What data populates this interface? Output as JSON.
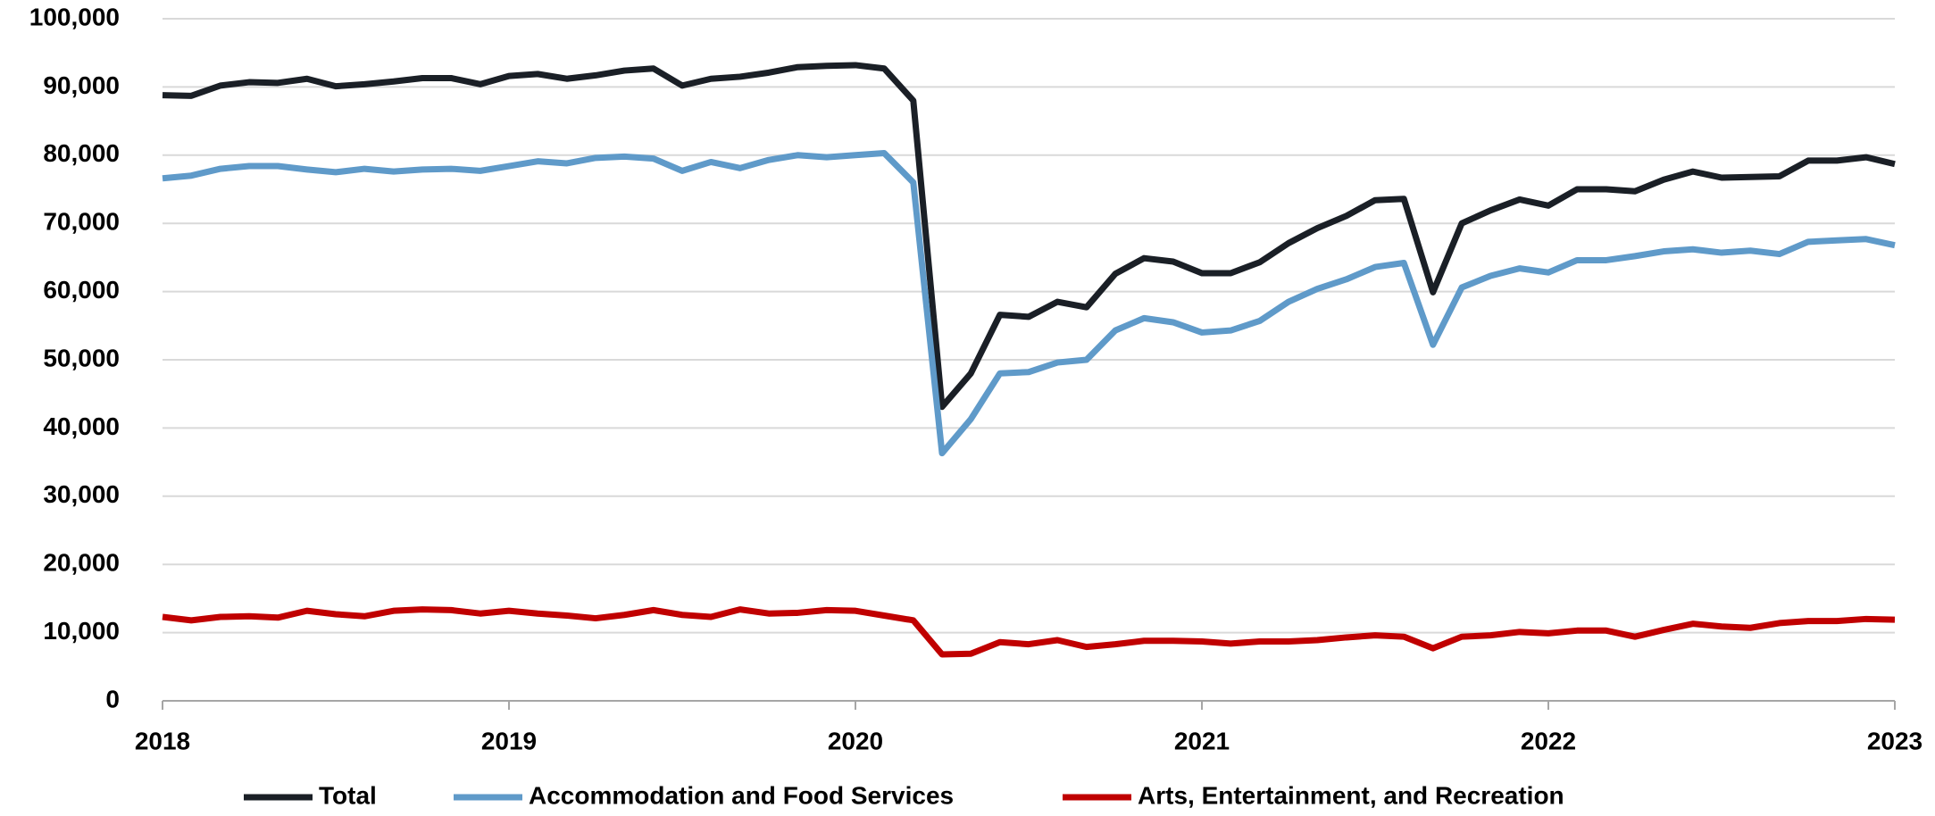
{
  "chart_data": {
    "type": "line",
    "x": [
      2018,
      2018.083,
      2018.167,
      2018.25,
      2018.333,
      2018.417,
      2018.5,
      2018.583,
      2018.667,
      2018.75,
      2018.833,
      2018.917,
      2019,
      2019.083,
      2019.167,
      2019.25,
      2019.333,
      2019.417,
      2019.5,
      2019.583,
      2019.667,
      2019.75,
      2019.833,
      2019.917,
      2020,
      2020.083,
      2020.167,
      2020.25,
      2020.333,
      2020.417,
      2020.5,
      2020.583,
      2020.667,
      2020.75,
      2020.833,
      2020.917,
      2021,
      2021.083,
      2021.167,
      2021.25,
      2021.333,
      2021.417,
      2021.5,
      2021.583,
      2021.667,
      2021.75,
      2021.833,
      2021.917,
      2022,
      2022.083,
      2022.167,
      2022.25,
      2022.333,
      2022.417,
      2022.5,
      2022.583,
      2022.667,
      2022.75,
      2022.833,
      2022.917,
      2023
    ],
    "series": [
      {
        "name": "Total",
        "color": "#1a1f26",
        "values": [
          88800,
          88700,
          90200,
          90700,
          90600,
          91200,
          90100,
          90400,
          90800,
          91300,
          91300,
          90400,
          91600,
          91900,
          91200,
          91700,
          92400,
          92700,
          90200,
          91200,
          91500,
          92100,
          92900,
          93100,
          93200,
          92700,
          88000,
          43100,
          48000,
          56600,
          56300,
          58500,
          57700,
          62600,
          64900,
          64400,
          62700,
          62700,
          64300,
          67100,
          69300,
          71100,
          73400,
          73600,
          59900,
          70000,
          71900,
          73500,
          72600,
          75000,
          75000,
          74700,
          76400,
          77600,
          76700,
          76800,
          76900,
          79200,
          79200,
          79700,
          78700
        ]
      },
      {
        "name": "Accommodation and Food Services",
        "color": "#5f9ac9",
        "values": [
          76600,
          77000,
          78000,
          78400,
          78400,
          77900,
          77500,
          78000,
          77600,
          77900,
          78000,
          77700,
          78400,
          79100,
          78800,
          79600,
          79800,
          79500,
          77700,
          79000,
          78100,
          79300,
          80000,
          79700,
          80000,
          80300,
          76000,
          36300,
          41300,
          48000,
          48200,
          49600,
          50000,
          54300,
          56100,
          55500,
          54000,
          54300,
          55700,
          58500,
          60400,
          61800,
          63600,
          64200,
          52200,
          60600,
          62300,
          63400,
          62800,
          64600,
          64600,
          65200,
          65900,
          66200,
          65700,
          66000,
          65500,
          67300,
          67500,
          67700,
          66800
        ]
      },
      {
        "name": "Arts, Entertainment, and Recreation",
        "color": "#c00000",
        "values": [
          12300,
          11800,
          12300,
          12400,
          12200,
          13200,
          12700,
          12400,
          13200,
          13400,
          13300,
          12800,
          13200,
          12800,
          12500,
          12100,
          12600,
          13300,
          12600,
          12300,
          13400,
          12800,
          12900,
          13300,
          13200,
          12500,
          11800,
          6800,
          6900,
          8600,
          8300,
          8900,
          7900,
          8300,
          8800,
          8800,
          8700,
          8400,
          8700,
          8700,
          8900,
          9300,
          9600,
          9400,
          7700,
          9400,
          9600,
          10100,
          9900,
          10300,
          10300,
          9400,
          10400,
          11300,
          10900,
          10700,
          11400,
          11700,
          11700,
          12000,
          11900
        ]
      }
    ],
    "xlim": [
      2018,
      2023
    ],
    "xticks": [
      2018,
      2019,
      2020,
      2021,
      2022,
      2023
    ],
    "ylim": [
      0,
      100000
    ],
    "yticks": [
      0,
      {
        "value": 10000,
        "label": "10,000"
      },
      {
        "value": 20000,
        "label": "20,000"
      },
      {
        "value": 30000,
        "label": "30,000"
      },
      {
        "value": 40000,
        "label": "40,000"
      },
      {
        "value": 50000,
        "label": "50,000"
      },
      {
        "value": 60000,
        "label": "60,000"
      },
      {
        "value": 70000,
        "label": "70,000"
      },
      {
        "value": 80000,
        "label": "80,000"
      },
      {
        "value": 90000,
        "label": "90,000"
      },
      {
        "value": 100000,
        "label": "100,000"
      }
    ],
    "grid": true,
    "legend": "bottom"
  }
}
